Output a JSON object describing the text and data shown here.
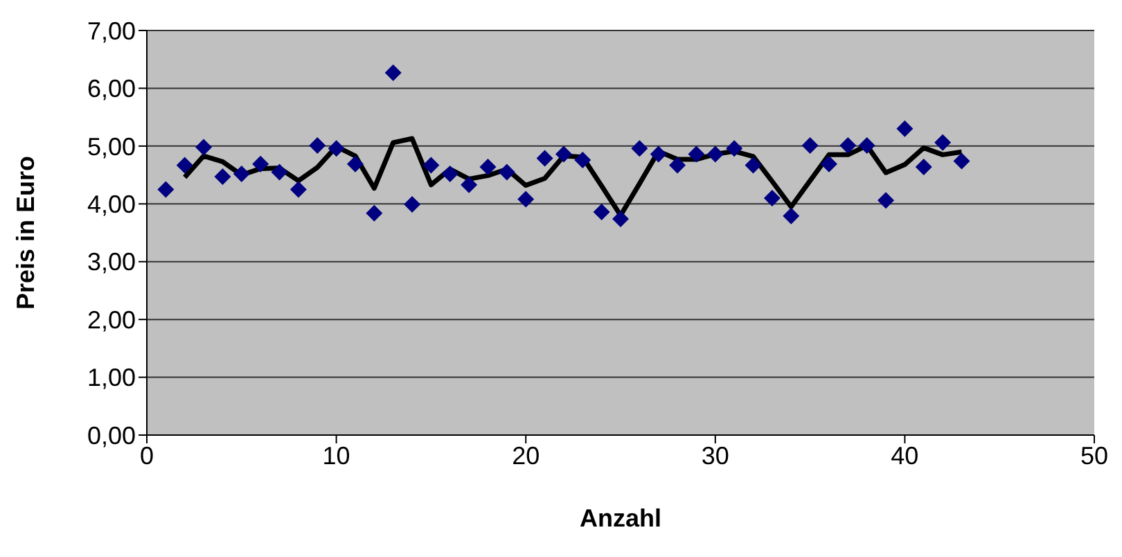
{
  "chart_data": {
    "type": "scatter",
    "xlabel": "Anzahl",
    "ylabel": "Preis in Euro",
    "xlim": [
      0,
      50
    ],
    "xticks": [
      0,
      10,
      20,
      30,
      40,
      50
    ],
    "ylim": [
      0,
      7
    ],
    "yticks": [
      {
        "value": 0,
        "label": "0,00"
      },
      {
        "value": 1,
        "label": "1,00"
      },
      {
        "value": 2,
        "label": "2,00"
      },
      {
        "value": 3,
        "label": "3,00"
      },
      {
        "value": 4,
        "label": "4,00"
      },
      {
        "value": 5,
        "label": "5,00"
      },
      {
        "value": 6,
        "label": "6,00"
      },
      {
        "value": 7,
        "label": "7,00"
      }
    ],
    "grid": "y",
    "legend": false,
    "marker": "diamond",
    "series": [
      {
        "color": "#000080",
        "x": [
          1,
          2,
          3,
          4,
          5,
          6,
          7,
          8,
          9,
          10,
          11,
          12,
          13,
          14,
          15,
          16,
          17,
          18,
          19,
          20,
          21,
          22,
          23,
          24,
          25,
          26,
          27,
          28,
          29,
          30,
          31,
          32,
          33,
          34,
          35,
          36,
          37,
          38,
          39,
          40,
          41,
          42,
          43
        ],
        "values": [
          4.25,
          4.67,
          4.98,
          4.47,
          4.52,
          4.69,
          4.55,
          4.25,
          5.01,
          4.96,
          4.69,
          3.84,
          6.27,
          3.99,
          4.67,
          4.52,
          4.33,
          4.64,
          4.55,
          4.08,
          4.79,
          4.86,
          4.76,
          3.86,
          3.74,
          4.96,
          4.86,
          4.67,
          4.86,
          4.86,
          4.96,
          4.67,
          4.1,
          3.79,
          5.01,
          4.69,
          5.01,
          5.01,
          4.06,
          5.3,
          4.64,
          5.06,
          4.74
        ]
      },
      {
        "type": "line",
        "color": "#000000",
        "marker": "none",
        "line_style": "solid",
        "x": [
          2,
          3,
          4,
          5,
          6,
          7,
          8,
          9,
          10,
          11,
          12,
          13,
          14,
          15,
          16,
          17,
          18,
          19,
          20,
          21,
          22,
          23,
          24,
          25,
          26,
          27,
          28,
          29,
          30,
          31,
          32,
          33,
          34,
          35,
          36,
          37,
          38,
          39,
          40,
          41,
          42,
          43
        ],
        "values": [
          4.46,
          4.83,
          4.73,
          4.5,
          4.61,
          4.62,
          4.4,
          4.63,
          4.99,
          4.83,
          4.27,
          5.06,
          5.13,
          4.33,
          4.6,
          4.43,
          4.49,
          4.6,
          4.32,
          4.44,
          4.83,
          4.81,
          4.31,
          3.8,
          4.35,
          4.91,
          4.77,
          4.77,
          4.86,
          4.91,
          4.82,
          4.39,
          3.95,
          4.4,
          4.85,
          4.85,
          5.01,
          4.54,
          4.68,
          4.97,
          4.85,
          4.9
        ]
      }
    ]
  }
}
